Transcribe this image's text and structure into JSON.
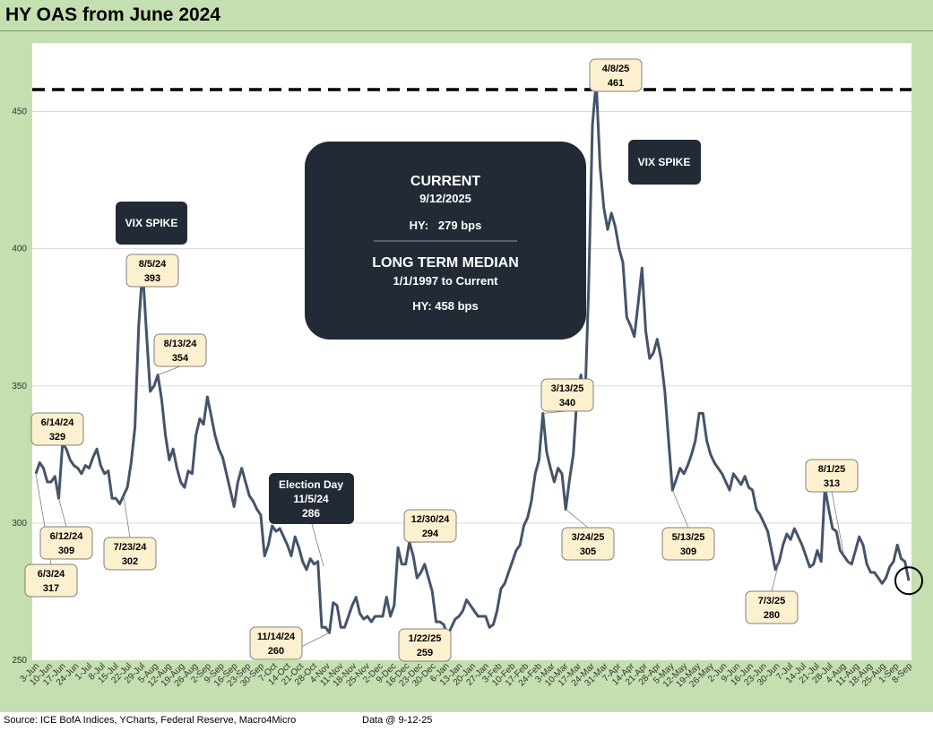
{
  "title": "HY OAS from June 2024",
  "footer": {
    "source": "Source: ICE BofA Indices, YCharts, Federal Reserve, Macro4Micro",
    "data_as_of": "Data @ 9-12-25"
  },
  "colors": {
    "frame": "#c4dfb0",
    "line": "#44546a",
    "callout_fill": "#fdf0cf",
    "dark_box": "#222a35",
    "median_line": "#000000"
  },
  "info_box": {
    "heading": "CURRENT",
    "date": "9/12/2025",
    "current_value": "HY:   279 bps",
    "median_heading": "LONG TERM MEDIAN",
    "median_range": "1/1/1997 to Current",
    "median_value": "HY: 458 bps"
  },
  "chart_data": {
    "type": "line",
    "title": "HY OAS from June 2024",
    "xlabel": "",
    "ylabel": "",
    "ylim": [
      250,
      475
    ],
    "yticks": [
      250,
      300,
      350,
      400,
      450
    ],
    "grid": "horizontal",
    "x_tick_labels": [
      "3-Jun",
      "10-Jun",
      "17-Jun",
      "24-Jun",
      "1-Jul",
      "8-Jul",
      "15-Jul",
      "22-Jul",
      "29-Jul",
      "5-Aug",
      "12-Aug",
      "19-Aug",
      "26-Aug",
      "2-Sep",
      "9-Sep",
      "16-Sep",
      "23-Sep",
      "30-Sep",
      "7-Oct",
      "14-Oct",
      "21-Oct",
      "28-Oct",
      "4-Nov",
      "11-Nov",
      "18-Nov",
      "25-Nov",
      "2-Dec",
      "9-Dec",
      "16-Dec",
      "23-Dec",
      "30-Dec",
      "6-Jan",
      "13-Jan",
      "20-Jan",
      "27-Jan",
      "3-Feb",
      "10-Feb",
      "17-Feb",
      "24-Feb",
      "3-Mar",
      "10-Mar",
      "17-Mar",
      "24-Mar",
      "31-Mar",
      "7-Apr",
      "14-Apr",
      "21-Apr",
      "28-Apr",
      "5-May",
      "12-May",
      "19-May",
      "26-May",
      "2-Jun",
      "9-Jun",
      "16-Jun",
      "23-Jun",
      "30-Jun",
      "7-Jul",
      "14-Jul",
      "21-Jul",
      "28-Jul",
      "4-Aug",
      "11-Aug",
      "18-Aug",
      "25-Aug",
      "1-Sep",
      "8-Sep"
    ],
    "reference_line": {
      "value": 458
    },
    "series": [
      {
        "values": [
          318,
          322,
          320,
          315,
          315,
          317,
          309,
          329,
          327,
          323,
          321,
          320,
          318,
          321,
          320,
          324,
          327,
          321,
          318,
          319,
          309,
          309,
          307,
          310,
          313,
          322,
          335,
          372,
          393,
          370,
          348,
          350,
          354,
          345,
          332,
          323,
          327,
          320,
          315,
          313,
          319,
          318,
          332,
          338,
          336,
          346,
          339,
          332,
          327,
          324,
          318,
          312,
          306,
          315,
          320,
          315,
          310,
          308,
          305,
          303,
          288,
          292,
          299,
          297,
          298,
          295,
          292,
          288,
          295,
          291,
          286,
          283,
          287,
          285,
          286,
          262,
          262,
          260,
          271,
          270,
          262,
          262,
          266,
          270,
          273,
          267,
          265,
          266,
          264,
          266,
          266,
          266,
          273,
          266,
          270,
          291,
          285,
          285,
          293,
          288,
          280,
          282,
          285,
          280,
          275,
          264,
          264,
          263,
          259,
          262,
          265,
          266,
          268,
          272,
          270,
          268,
          266,
          266,
          266,
          262,
          263,
          268,
          276,
          278,
          282,
          286,
          290,
          292,
          299,
          302,
          308,
          318,
          323,
          340,
          326,
          320,
          315,
          320,
          318,
          305,
          316,
          325,
          347,
          354,
          342,
          385,
          445,
          461,
          430,
          415,
          407,
          413,
          408,
          400,
          395,
          375,
          372,
          368,
          380,
          393,
          370,
          360,
          362,
          367,
          360,
          348,
          330,
          312,
          316,
          320,
          318,
          321,
          325,
          330,
          340,
          340,
          330,
          325,
          322,
          320,
          318,
          315,
          312,
          318,
          316,
          314,
          317,
          313,
          312,
          305,
          303,
          300,
          297,
          290,
          283,
          286,
          292,
          296,
          294,
          298,
          295,
          292,
          288,
          284,
          285,
          290,
          286,
          313,
          305,
          298,
          297,
          290,
          288,
          286,
          285,
          290,
          295,
          292,
          285,
          282,
          282,
          280,
          278,
          280,
          284,
          286,
          292,
          287,
          286,
          279
        ],
        "labels": [
          {
            "date": "6/3/24",
            "value": "317"
          },
          {
            "date": "6/14/24",
            "value": "329"
          },
          {
            "date": "6/12/24",
            "value": "309"
          },
          {
            "date": "7/23/24",
            "value": "302"
          },
          {
            "date": "8/5/24",
            "value": "393"
          },
          {
            "date": "8/13/24",
            "value": "354"
          },
          {
            "date": "11/14/24",
            "value": "260"
          },
          {
            "date": "12/30/24",
            "value": "294"
          },
          {
            "date": "1/22/25",
            "value": "259"
          },
          {
            "date": "3/13/25",
            "value": "340"
          },
          {
            "date": "3/24/25",
            "value": "305"
          },
          {
            "date": "4/8/25",
            "value": "461"
          },
          {
            "date": "5/13/25",
            "value": "309"
          },
          {
            "date": "7/3/25",
            "value": "280"
          },
          {
            "date": "8/1/25",
            "value": "313"
          }
        ]
      }
    ],
    "annotations": [
      {
        "text": "VIX SPIKE"
      },
      {
        "text": "VIX SPIKE"
      },
      {
        "title": "Election Day",
        "date": "11/5/24",
        "value": "286"
      }
    ]
  }
}
